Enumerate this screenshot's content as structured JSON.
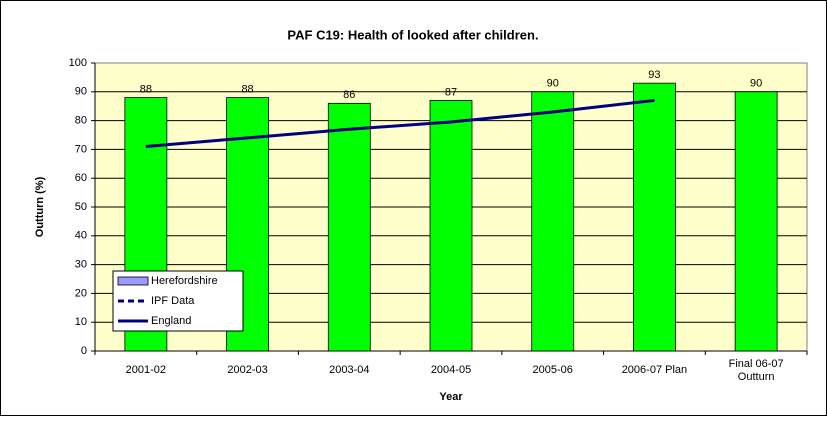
{
  "chart_data": {
    "type": "bar",
    "title": "PAF C19: Health of looked after children.",
    "x_label": "Year",
    "y_label": "Outturn (%)",
    "categories": [
      "2001-02",
      "2002-03",
      "2003-04",
      "2004-05",
      "2005-06",
      "2006-07 Plan",
      "Final 06-07 Outturn"
    ],
    "series": [
      {
        "name": "Herefordshire",
        "type": "bar",
        "color": "#00ff00",
        "legend_color": "#9999ff",
        "values": [
          88,
          88,
          86,
          87,
          90,
          93,
          90
        ]
      },
      {
        "name": "IPF Data",
        "type": "line",
        "dashed": true,
        "color": "#000080",
        "values": [
          null,
          null,
          null,
          null,
          null,
          null,
          null
        ]
      },
      {
        "name": "England",
        "type": "line",
        "color": "#000080",
        "values": [
          71,
          74,
          77,
          79.5,
          83,
          87,
          null
        ]
      }
    ],
    "ylim": [
      0,
      100
    ],
    "yticks": [
      0,
      10,
      20,
      30,
      40,
      50,
      60,
      70,
      80,
      90,
      100
    ],
    "grid": true,
    "legend": "lower left"
  }
}
